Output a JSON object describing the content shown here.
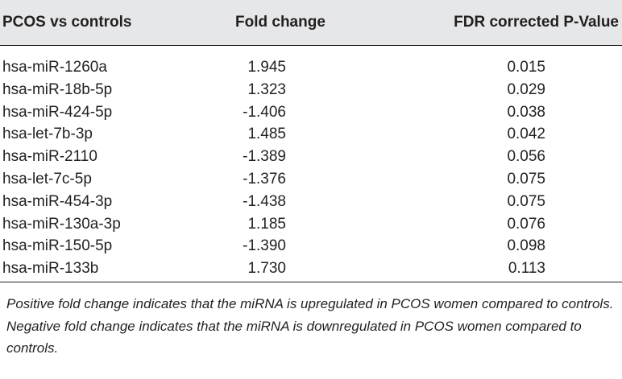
{
  "table": {
    "columns": [
      "PCOS vs controls",
      "Fold change",
      "FDR corrected P-Value"
    ],
    "rows": [
      [
        "hsa-miR-1260a",
        "1.945",
        "0.015"
      ],
      [
        "hsa-miR-18b-5p",
        "1.323",
        "0.029"
      ],
      [
        "hsa-miR-424-5p",
        "-1.406",
        "0.038"
      ],
      [
        "hsa-let-7b-3p",
        "1.485",
        "0.042"
      ],
      [
        "hsa-miR-2110",
        "-1.389",
        "0.056"
      ],
      [
        "hsa-let-7c-5p",
        "-1.376",
        "0.075"
      ],
      [
        "hsa-miR-454-3p",
        "-1.438",
        "0.075"
      ],
      [
        "hsa-miR-130a-3p",
        "1.185",
        "0.076"
      ],
      [
        "hsa-miR-150-5p",
        "-1.390",
        "0.098"
      ],
      [
        "hsa-miR-133b",
        "1.730",
        "0.113"
      ]
    ],
    "footnote": "Positive fold change indicates that the miRNA is upregulated in PCOS women compared to controls. Negative fold change indicates that the miRNA is downregulated in PCOS women compared to controls."
  }
}
